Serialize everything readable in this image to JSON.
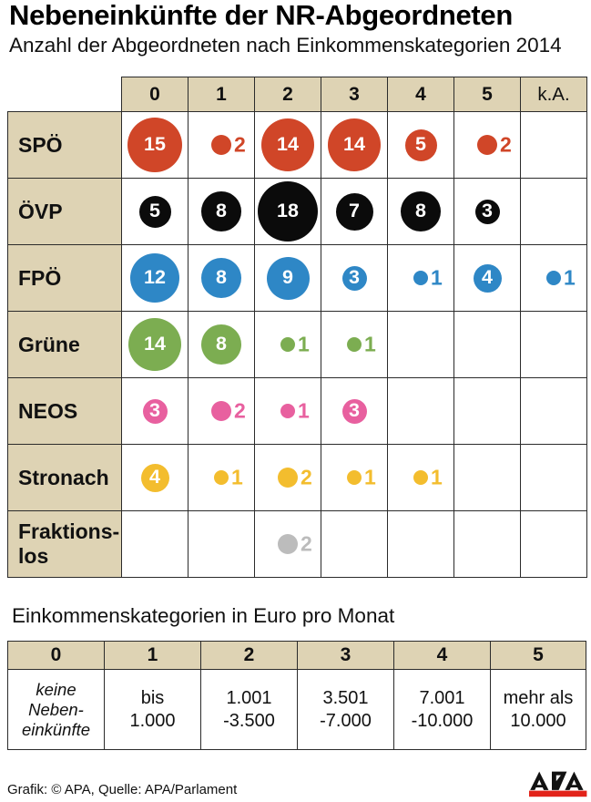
{
  "title": "Nebeneinkünfte der NR-Abgeordneten",
  "subtitle": "Anzahl der Abgeordneten nach Einkommenskategorien 2014",
  "footer": {
    "credit": "Grafik: © APA, Quelle: APA/Parlament"
  },
  "logo": {
    "name": "APA",
    "bar_color": "#e2231a",
    "letter_color": "#121212"
  },
  "colors": {
    "header_beige": "#ded3b4",
    "grid_line": "#2b2b2b",
    "background": "#ffffff"
  },
  "chart_data": {
    "type": "bubble-matrix",
    "title": "Nebeneinkünfte der NR-Abgeordneten",
    "subtitle": "Anzahl der Abgeordneten nach Einkommenskategorien 2014",
    "columns": [
      "0",
      "1",
      "2",
      "3",
      "4",
      "5",
      "k.A."
    ],
    "bubble_scale": "diameter_px = 15.5 * sqrt(value)",
    "label_inside_min_value": 3,
    "series": [
      {
        "name": "SPÖ",
        "label": "SPÖ",
        "color": "#d04628",
        "values": [
          15,
          2,
          14,
          14,
          5,
          2,
          null
        ]
      },
      {
        "name": "ÖVP",
        "label": "ÖVP",
        "color": "#0b0b0b",
        "values": [
          5,
          8,
          18,
          7,
          8,
          3,
          null
        ]
      },
      {
        "name": "FPÖ",
        "label": "FPÖ",
        "color": "#2e87c6",
        "values": [
          12,
          8,
          9,
          3,
          1,
          4,
          1
        ]
      },
      {
        "name": "Grüne",
        "label": "Grüne",
        "color": "#7cad51",
        "values": [
          14,
          8,
          1,
          1,
          null,
          null,
          null
        ]
      },
      {
        "name": "NEOS",
        "label": "NEOS",
        "color": "#e8609f",
        "values": [
          3,
          2,
          1,
          3,
          null,
          null,
          null
        ]
      },
      {
        "name": "Stronach",
        "label": "Stronach",
        "color": "#f3bd2e",
        "values": [
          4,
          1,
          2,
          1,
          1,
          null,
          null
        ]
      },
      {
        "name": "Fraktionslos",
        "label": "Fraktions-\nlos",
        "color": "#bcbcbc",
        "values": [
          null,
          null,
          2,
          null,
          null,
          null,
          null
        ]
      }
    ],
    "legend": {
      "heading": "Einkommenskategorien in Euro pro Monat",
      "columns": [
        "0",
        "1",
        "2",
        "3",
        "4",
        "5"
      ],
      "values": [
        "keine\nNeben-\neinkünfte",
        "bis\n1.000",
        "1.001\n-3.500",
        "3.501\n-7.000",
        "7.001\n-10.000",
        "mehr als\n10.000"
      ]
    }
  }
}
